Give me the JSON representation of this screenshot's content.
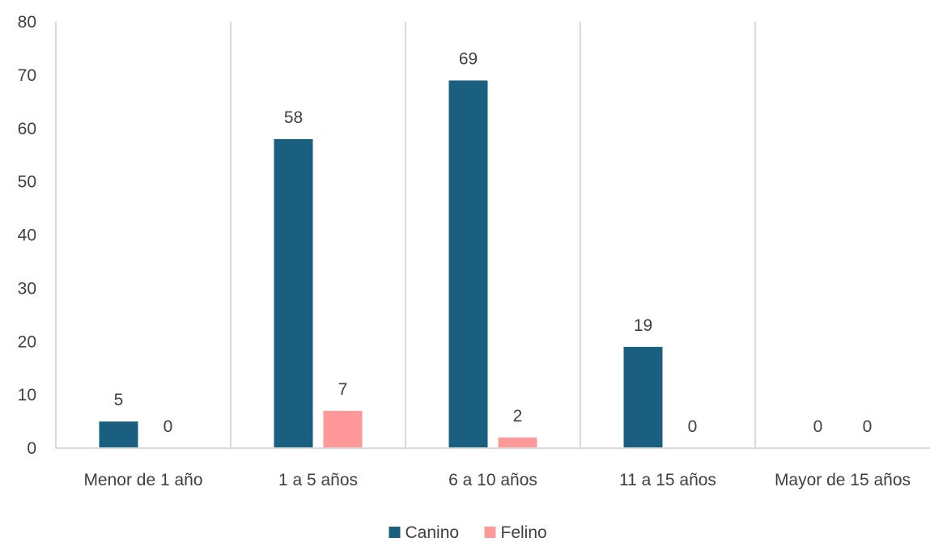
{
  "chart_data": {
    "type": "bar",
    "title": "",
    "xlabel": "",
    "ylabel": "",
    "ylim": [
      0,
      80
    ],
    "yticks": [
      "0",
      "10",
      "20",
      "30",
      "40",
      "50",
      "60",
      "70",
      "80"
    ],
    "grid": false,
    "legend_position": "bottom",
    "categories": [
      "Menor de 1 año",
      "1 a 5 años",
      "6 a 10 años",
      "11 a 15 años",
      "Mayor de 15 años"
    ],
    "series": [
      {
        "name": "Canino",
        "color": "#1a5f80",
        "values": [
          5,
          58,
          69,
          19,
          0
        ]
      },
      {
        "name": "Felino",
        "color": "#ff9999",
        "values": [
          0,
          7,
          2,
          0,
          0
        ]
      }
    ]
  }
}
